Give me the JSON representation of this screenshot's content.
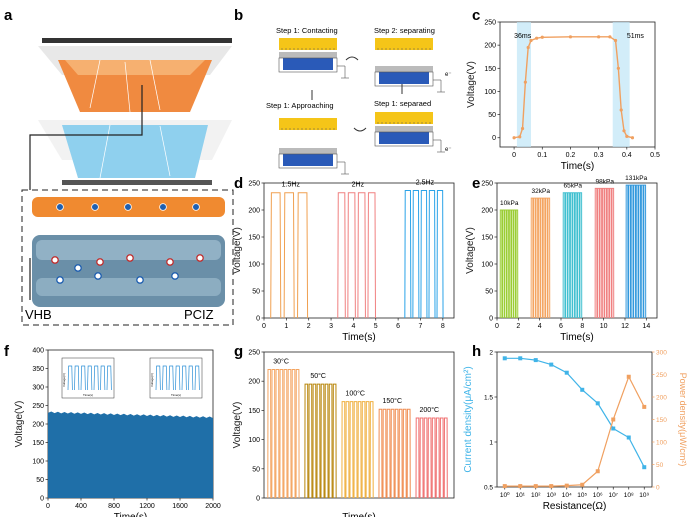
{
  "panel_labels": {
    "a": "a",
    "b": "b",
    "c": "c",
    "d": "d",
    "e": "e",
    "f": "f",
    "g": "g",
    "h": "h"
  },
  "panel_a": {
    "left_label": "VHB",
    "right_label": "PCIZ"
  },
  "panel_b": {
    "step_contacting": "Step 1: Contacting",
    "step_separating": "Step 2: separating",
    "step_approaching": "Step 1: Approaching",
    "step_separated": "Step 1: separaed",
    "electron_label": "e⁻"
  },
  "colors": {
    "orange": "#f0a050",
    "blue": "#2a6fc9",
    "cyan": "#6fc3f0",
    "fill_blue": "#1f5f9e"
  },
  "chart_data": [
    {
      "id": "c",
      "type": "line",
      "xlabel": "Time(s)",
      "ylabel": "Voltage(V)",
      "xlim": [
        -0.05,
        0.5
      ],
      "ylim": [
        -20,
        250
      ],
      "xticks": [
        0.0,
        0.1,
        0.2,
        0.3,
        0.4,
        0.5
      ],
      "yticks": [
        0,
        50,
        100,
        150,
        200,
        250
      ],
      "x": [
        0.0,
        0.02,
        0.03,
        0.04,
        0.05,
        0.06,
        0.08,
        0.1,
        0.2,
        0.3,
        0.34,
        0.36,
        0.37,
        0.38,
        0.39,
        0.4,
        0.42
      ],
      "y": [
        0,
        2,
        20,
        120,
        195,
        210,
        215,
        217,
        218,
        218,
        218,
        210,
        150,
        60,
        15,
        3,
        0
      ],
      "annotations": [
        "36ms",
        "51ms"
      ]
    },
    {
      "id": "d",
      "type": "line",
      "xlabel": "Time(s)",
      "ylabel": "Voltage(V)",
      "xlim": [
        0,
        8.5
      ],
      "ylim": [
        0,
        250
      ],
      "xticks": [
        0,
        1,
        2,
        3,
        4,
        5,
        6,
        7,
        8
      ],
      "yticks": [
        0,
        50,
        100,
        150,
        200,
        250
      ],
      "series": [
        {
          "name": "1.5Hz",
          "color": "#f0a050",
          "start": 0.3,
          "end": 2.1,
          "pulses": 3,
          "peak": 232
        },
        {
          "name": "2Hz",
          "color": "#f08080",
          "start": 3.3,
          "end": 5.1,
          "pulses": 4,
          "peak": 232
        },
        {
          "name": "2.5Hz",
          "color": "#2aa3e8",
          "start": 6.3,
          "end": 8.1,
          "pulses": 5,
          "peak": 236
        }
      ]
    },
    {
      "id": "e",
      "type": "line",
      "xlabel": "Time(s)",
      "ylabel": "Voltage(V)",
      "xlim": [
        0,
        15
      ],
      "ylim": [
        0,
        250
      ],
      "xticks": [
        0,
        2,
        4,
        6,
        8,
        10,
        12,
        14
      ],
      "yticks": [
        0,
        50,
        100,
        150,
        200,
        250
      ],
      "series": [
        {
          "name": "10kPa",
          "color": "#9acd32",
          "start": 0.3,
          "end": 2.0,
          "pulses": 8,
          "peak": 200
        },
        {
          "name": "32kPa",
          "color": "#f4a460",
          "start": 3.2,
          "end": 5.0,
          "pulses": 8,
          "peak": 222
        },
        {
          "name": "65kPa",
          "color": "#40c0d0",
          "start": 6.2,
          "end": 8.0,
          "pulses": 8,
          "peak": 232
        },
        {
          "name": "98kPa",
          "color": "#f08080",
          "start": 9.2,
          "end": 11.0,
          "pulses": 8,
          "peak": 240
        },
        {
          "name": "131kPa",
          "color": "#3399dd",
          "start": 12.1,
          "end": 14.0,
          "pulses": 8,
          "peak": 246
        }
      ]
    },
    {
      "id": "f",
      "type": "area",
      "xlabel": "Time(s)",
      "ylabel": "Voltage(V)",
      "xlim": [
        0,
        2000
      ],
      "ylim": [
        0,
        400
      ],
      "xticks": [
        0,
        400,
        800,
        1200,
        1600,
        2000
      ],
      "yticks": [
        0,
        50,
        100,
        150,
        200,
        250,
        300,
        350,
        400
      ],
      "values_start": 232,
      "values_end": 218,
      "inset_ylabel": "Voltage(V)",
      "inset_xlabel": "Time(s)"
    },
    {
      "id": "g",
      "type": "line",
      "xlabel": "Time(s)",
      "ylabel": "Voltage(V)",
      "ylim": [
        0,
        250
      ],
      "yticks": [
        0,
        50,
        100,
        150,
        200,
        250
      ],
      "series": [
        {
          "name": "30°C",
          "color": "#f4a460",
          "peak": 220
        },
        {
          "name": "50°C",
          "color": "#b8860b",
          "peak": 195
        },
        {
          "name": "100°C",
          "color": "#f0b040",
          "peak": 165
        },
        {
          "name": "150°C",
          "color": "#f08c50",
          "peak": 152
        },
        {
          "name": "200°C",
          "color": "#f07070",
          "peak": 137
        }
      ]
    },
    {
      "id": "h",
      "type": "line",
      "xlabel": "Resistance(Ω)",
      "ylabel": "Current density(μA/cm²)",
      "ylabel2": "Power density(μW/cm²)",
      "ylim": [
        0.5,
        2.0
      ],
      "ylim2": [
        0,
        300
      ],
      "xticks": [
        "10⁰",
        "10¹",
        "10²",
        "10³",
        "10⁴",
        "10⁵",
        "10⁶",
        "10⁷",
        "10⁸",
        "10⁹"
      ],
      "yticks": [
        0.5,
        1.0,
        1.5,
        2.0
      ],
      "yticks2": [
        0,
        50,
        100,
        150,
        200,
        250,
        300
      ],
      "series": [
        {
          "name": "Current density",
          "axis": "left",
          "color": "#40b4e8",
          "x": [
            0,
            1,
            2,
            3,
            4,
            5,
            6,
            7,
            8,
            9
          ],
          "y": [
            1.93,
            1.93,
            1.91,
            1.86,
            1.77,
            1.58,
            1.43,
            1.15,
            1.05,
            0.72
          ]
        },
        {
          "name": "Power density",
          "axis": "right",
          "color": "#f0a060",
          "x": [
            0,
            1,
            2,
            3,
            4,
            5,
            6,
            7,
            8,
            9
          ],
          "y": [
            2,
            2,
            2,
            2,
            3,
            5,
            35,
            150,
            245,
            178
          ]
        }
      ]
    }
  ]
}
